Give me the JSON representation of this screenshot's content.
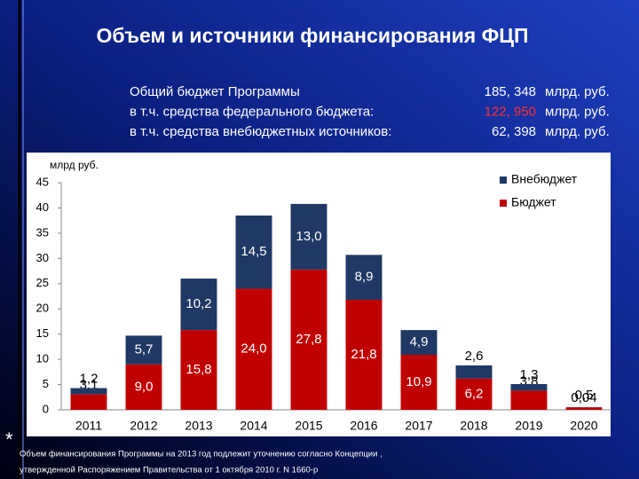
{
  "slide": {
    "title": "Объем и источники финансирования ФЦП",
    "summary": [
      [
        "Общий бюджет Программы",
        "185, 348",
        "млрд. руб."
      ],
      [
        "в т.ч. средства федерального бюджета:",
        "122, 950",
        "млрд. руб."
      ],
      [
        "в т.ч. средства внебюджетных источников:",
        "62, 398",
        "млрд. руб."
      ]
    ],
    "footnote_mark": "*",
    "footnote": [
      "Объем финансирования Программы на 2013 год подлежит уточнению согласно Концепции ,",
      "утвержденной Распоряжением  Правительства от 1 октября 2010 г. N 1660-р"
    ]
  },
  "chart_data": {
    "type": "stacked-bar",
    "y_label": "млрд руб.",
    "categories": [
      "2011",
      "2012",
      "2013",
      "2014",
      "2015",
      "2016",
      "2017",
      "2018",
      "2019",
      "2020"
    ],
    "series": [
      {
        "name": "Бюджет",
        "color": "#c00000",
        "values": [
          3.1,
          9.0,
          15.8,
          24.0,
          27.8,
          21.8,
          10.9,
          6.2,
          3.8,
          0.5
        ],
        "value_labels": [
          "3,1",
          "9,0",
          "15,8",
          "24,0",
          "27,8",
          "21,8",
          "10,9",
          "6,2",
          "3,8",
          "0,5"
        ]
      },
      {
        "name": "Внебюджет",
        "color": "#1f3864",
        "values": [
          1.2,
          5.7,
          10.2,
          14.5,
          13.0,
          8.9,
          4.9,
          2.6,
          1.3,
          0.04
        ],
        "value_labels": [
          "1,2",
          "5,7",
          "10,2",
          "14,5",
          "13,0",
          "8,9",
          "4,9",
          "2,6",
          "1,3",
          "0,04"
        ]
      }
    ],
    "ylim": [
      0,
      45
    ],
    "yticks": [
      0,
      5,
      10,
      15,
      20,
      25,
      30,
      35,
      40,
      45
    ]
  }
}
